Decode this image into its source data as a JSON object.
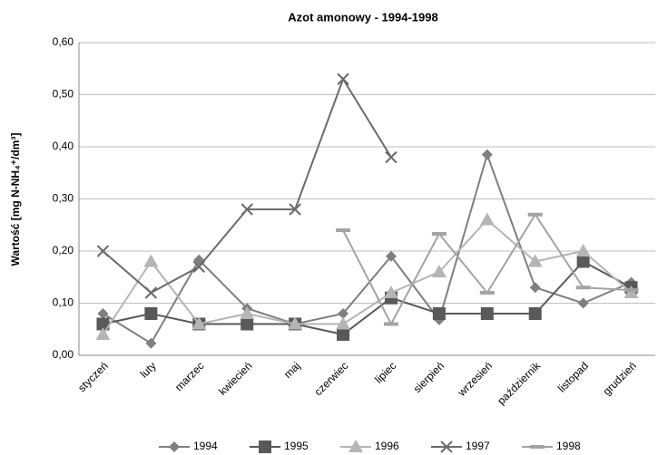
{
  "chart_data": {
    "type": "line",
    "title": "Azot amonowy - 1994-1998",
    "y_label": "Wartość [mg N-NH₄⁺/dm³]",
    "categories": [
      "styczeń",
      "luty",
      "marzec",
      "kwiecień",
      "maj",
      "czerwiec",
      "lipiec",
      "sierpień",
      "wrzesień",
      "październik",
      "listopad",
      "grudzień"
    ],
    "series": [
      {
        "name": "1994",
        "color": "#7f7f7f",
        "marker": "diamond",
        "values": [
          0.08,
          0.023,
          0.183,
          0.09,
          0.06,
          0.08,
          0.19,
          0.068,
          0.385,
          0.13,
          0.1,
          0.14
        ]
      },
      {
        "name": "1995",
        "color": "#595959",
        "marker": "square",
        "values": [
          0.06,
          0.08,
          0.06,
          0.06,
          0.06,
          0.04,
          0.11,
          0.08,
          0.08,
          0.08,
          0.18,
          0.13
        ]
      },
      {
        "name": "1996",
        "color": "#b5b5b5",
        "marker": "triangle",
        "values": [
          0.04,
          0.18,
          0.06,
          0.08,
          0.06,
          0.06,
          0.12,
          0.16,
          0.26,
          0.18,
          0.2,
          0.12
        ]
      },
      {
        "name": "1997",
        "color": "#6b6b6b",
        "marker": "x",
        "values": [
          0.2,
          0.12,
          0.17,
          0.28,
          0.28,
          0.53,
          0.38,
          null,
          null,
          null,
          null,
          null
        ]
      },
      {
        "name": "1998",
        "color": "#a3a3a3",
        "marker": "dash",
        "values": [
          null,
          null,
          null,
          null,
          null,
          0.24,
          0.06,
          0.233,
          0.12,
          0.27,
          0.13,
          0.125
        ]
      }
    ],
    "ylim": [
      0,
      0.6
    ],
    "yticks": [
      {
        "value": 0,
        "label": "0,00"
      },
      {
        "value": 0.1,
        "label": "0,10"
      },
      {
        "value": 0.2,
        "label": "0,20"
      },
      {
        "value": 0.3,
        "label": "0,30"
      },
      {
        "value": 0.4,
        "label": "0,40"
      },
      {
        "value": 0.5,
        "label": "0,50"
      },
      {
        "value": 0.6,
        "label": "0,60"
      }
    ],
    "grid": true,
    "legend": "bottom"
  }
}
